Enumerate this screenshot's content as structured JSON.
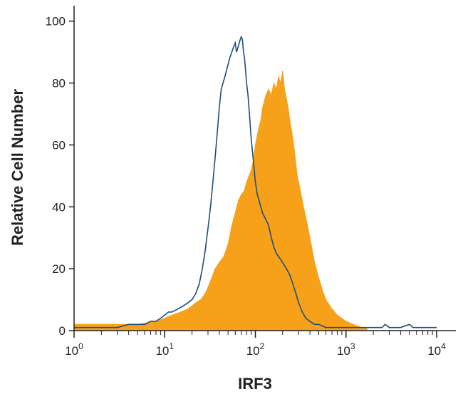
{
  "chart_data": {
    "type": "area",
    "title": "",
    "xlabel": "IRF3",
    "ylabel": "Relative Cell Number",
    "xscale": "log",
    "xlim": [
      1,
      10000
    ],
    "ylim": [
      0,
      105
    ],
    "grid": false,
    "legend": "none",
    "x_ticks": [
      {
        "value": 1,
        "base": "10",
        "exp": "0"
      },
      {
        "value": 10,
        "base": "10",
        "exp": "1"
      },
      {
        "value": 100,
        "base": "10",
        "exp": "2"
      },
      {
        "value": 1000,
        "base": "10",
        "exp": "3"
      },
      {
        "value": 10000,
        "base": "10",
        "exp": "4"
      }
    ],
    "y_ticks": [
      0,
      20,
      40,
      60,
      80,
      100
    ],
    "series": [
      {
        "style": "filled",
        "color": "#f7a11a",
        "x": [
          1,
          2,
          5,
          8,
          10,
          12,
          15,
          18,
          20,
          22,
          25,
          28,
          30,
          33,
          36,
          40,
          45,
          50,
          55,
          60,
          65,
          70,
          75,
          80,
          85,
          90,
          95,
          100,
          105,
          110,
          115,
          120,
          125,
          130,
          140,
          150,
          160,
          170,
          180,
          190,
          200,
          210,
          220,
          230,
          240,
          250,
          270,
          290,
          310,
          340,
          370,
          400,
          450,
          500,
          550,
          600,
          700,
          800,
          1000,
          1200,
          1500,
          1700
        ],
        "y": [
          2,
          2,
          2,
          3,
          4,
          5,
          6,
          7,
          8,
          9,
          10,
          12,
          14,
          17,
          20,
          22,
          24,
          28,
          34,
          38,
          42,
          44,
          45,
          48,
          50,
          52,
          55,
          60,
          63,
          66,
          68,
          72,
          74,
          76,
          78,
          76,
          80,
          78,
          82,
          80,
          84,
          78,
          75,
          72,
          68,
          65,
          58,
          50,
          46,
          40,
          35,
          30,
          22,
          17,
          13,
          10,
          7,
          5,
          3,
          2,
          1,
          1
        ]
      },
      {
        "style": "outline",
        "color": "#1f4e79",
        "x": [
          1,
          2,
          3,
          4,
          5,
          6,
          7,
          8,
          9,
          10,
          11,
          12,
          14,
          16,
          18,
          20,
          22,
          24,
          26,
          28,
          30,
          32,
          34,
          36,
          38,
          40,
          42,
          44,
          46,
          48,
          50,
          52,
          55,
          58,
          60,
          62,
          65,
          68,
          70,
          72,
          74,
          76,
          78,
          80,
          83,
          86,
          90,
          95,
          100,
          105,
          110,
          115,
          120,
          130,
          140,
          150,
          160,
          170,
          180,
          200,
          220,
          240,
          260,
          280,
          300,
          330,
          360,
          400,
          450,
          500,
          600,
          700,
          800,
          1000,
          1200,
          1500,
          2000,
          2500,
          2700,
          3000,
          3500,
          4000,
          5000,
          5500,
          6000,
          8000,
          10000
        ],
        "y": [
          1,
          1,
          1,
          2,
          2,
          2,
          3,
          3,
          4,
          5,
          6,
          6,
          7,
          8,
          9,
          10,
          12,
          15,
          20,
          26,
          33,
          40,
          48,
          56,
          64,
          72,
          78,
          80,
          82,
          84,
          86,
          88,
          90,
          92,
          93,
          90,
          92,
          94,
          95,
          94,
          90,
          88,
          84,
          80,
          76,
          70,
          62,
          55,
          48,
          44,
          42,
          40,
          38,
          36,
          34,
          30,
          27,
          25,
          24,
          22,
          20,
          18,
          15,
          12,
          9,
          6,
          4,
          3,
          2,
          2,
          1,
          1,
          1,
          1,
          1,
          1,
          1,
          1,
          2,
          1,
          1,
          1,
          2,
          1,
          1,
          1,
          1
        ]
      }
    ]
  }
}
